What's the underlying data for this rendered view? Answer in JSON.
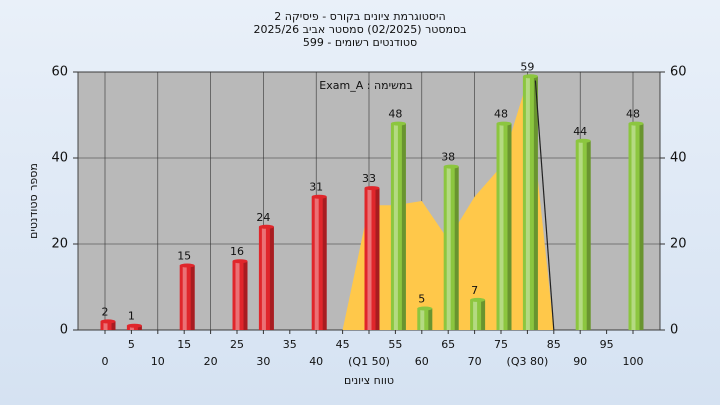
{
  "chart_data": {
    "type": "bar",
    "title": [
      "היסטוגרמת ציונים בקורס - פיסיקה 2",
      "בסמסטר  (02/2025)  סמסטר אביב 2025/26",
      "סטודנטים רשומים - 599"
    ],
    "annotation": "במשימה : Exam_A",
    "xlabel": "טווח ציונים",
    "ylabel": "מספר סטודנטים",
    "categories": [
      "0",
      "5",
      "10",
      "15",
      "20",
      "25",
      "30",
      "35",
      "40",
      "45",
      "(Q1 50)",
      "55",
      "60",
      "65",
      "70",
      "75",
      "(Q3 80)",
      "85",
      "90",
      "95",
      "100"
    ],
    "values": [
      2,
      1,
      null,
      15,
      null,
      16,
      24,
      null,
      31,
      null,
      33,
      48,
      5,
      38,
      7,
      48,
      59,
      null,
      44,
      null,
      48
    ],
    "colors": [
      "#e0262b",
      "#e0262b",
      "#e0262b",
      "#e0262b",
      "#e0262b",
      "#e0262b",
      "#e0262b",
      "#e0262b",
      "#e0262b",
      "#e0262b",
      "#e0262b",
      "#8cc63f",
      "#8cc63f",
      "#8cc63f",
      "#8cc63f",
      "#8cc63f",
      "#8cc63f",
      "#8cc63f",
      "#8cc63f",
      "#8cc63f",
      "#8cc63f"
    ],
    "area": {
      "color": "#ffc84a",
      "values": [
        null,
        null,
        null,
        null,
        null,
        null,
        null,
        null,
        null,
        0,
        29,
        29,
        30,
        21,
        31,
        38,
        58,
        0,
        null,
        null,
        null
      ]
    },
    "line": {
      "color": "#222222",
      "values": [
        null,
        null,
        null,
        null,
        null,
        null,
        null,
        null,
        null,
        null,
        null,
        null,
        null,
        null,
        null,
        null,
        58,
        0,
        null,
        null,
        null
      ]
    },
    "ylim": [
      0,
      60
    ],
    "yticks": [
      0,
      20,
      40,
      60
    ],
    "y2lim": [
      0,
      60
    ],
    "y2ticks": [
      0,
      20,
      40,
      60
    ],
    "grid": true
  }
}
